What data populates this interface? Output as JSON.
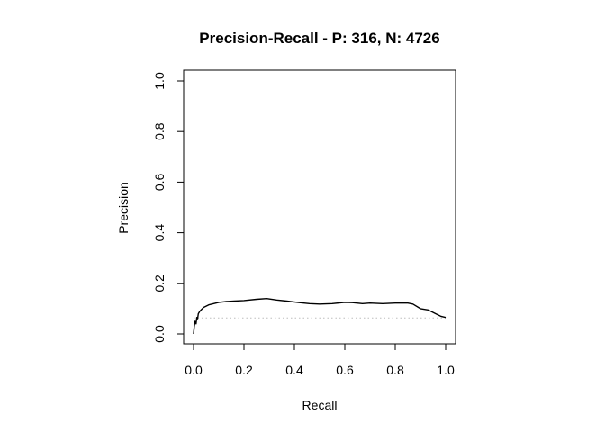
{
  "chart_data": {
    "type": "line",
    "title": "Precision-Recall - P: 316, N: 4726",
    "xlabel": "Recall",
    "ylabel": "Precision",
    "xlim": [
      0,
      1
    ],
    "ylim": [
      0,
      1
    ],
    "x_ticks": [
      "0.0",
      "0.2",
      "0.4",
      "0.6",
      "0.8",
      "1.0"
    ],
    "y_ticks": [
      "0.0",
      "0.2",
      "0.4",
      "0.6",
      "0.8",
      "1.0"
    ],
    "grid": false,
    "legend": "none",
    "colors": {
      "curve": "#000000",
      "baseline": "#bebebe",
      "axis": "#000000"
    },
    "baseline": {
      "precision": 0.063,
      "style": "dotted"
    },
    "series": [
      {
        "x": [
          0.0,
          0.003,
          0.006,
          0.01,
          0.013,
          0.016,
          0.019,
          0.025,
          0.03,
          0.04,
          0.05,
          0.06,
          0.08,
          0.1,
          0.13,
          0.16,
          0.2,
          0.25,
          0.29,
          0.33,
          0.37,
          0.42,
          0.46,
          0.5,
          0.55,
          0.6,
          0.63,
          0.67,
          0.7,
          0.75,
          0.8,
          0.85,
          0.87,
          0.9,
          0.93,
          0.96,
          0.98,
          1.0
        ],
        "y": [
          0.0,
          0.03,
          0.05,
          0.04,
          0.065,
          0.06,
          0.08,
          0.09,
          0.095,
          0.105,
          0.11,
          0.115,
          0.12,
          0.125,
          0.128,
          0.13,
          0.132,
          0.137,
          0.14,
          0.134,
          0.13,
          0.124,
          0.12,
          0.118,
          0.12,
          0.125,
          0.124,
          0.12,
          0.122,
          0.12,
          0.122,
          0.122,
          0.118,
          0.1,
          0.095,
          0.08,
          0.07,
          0.065
        ]
      }
    ]
  }
}
